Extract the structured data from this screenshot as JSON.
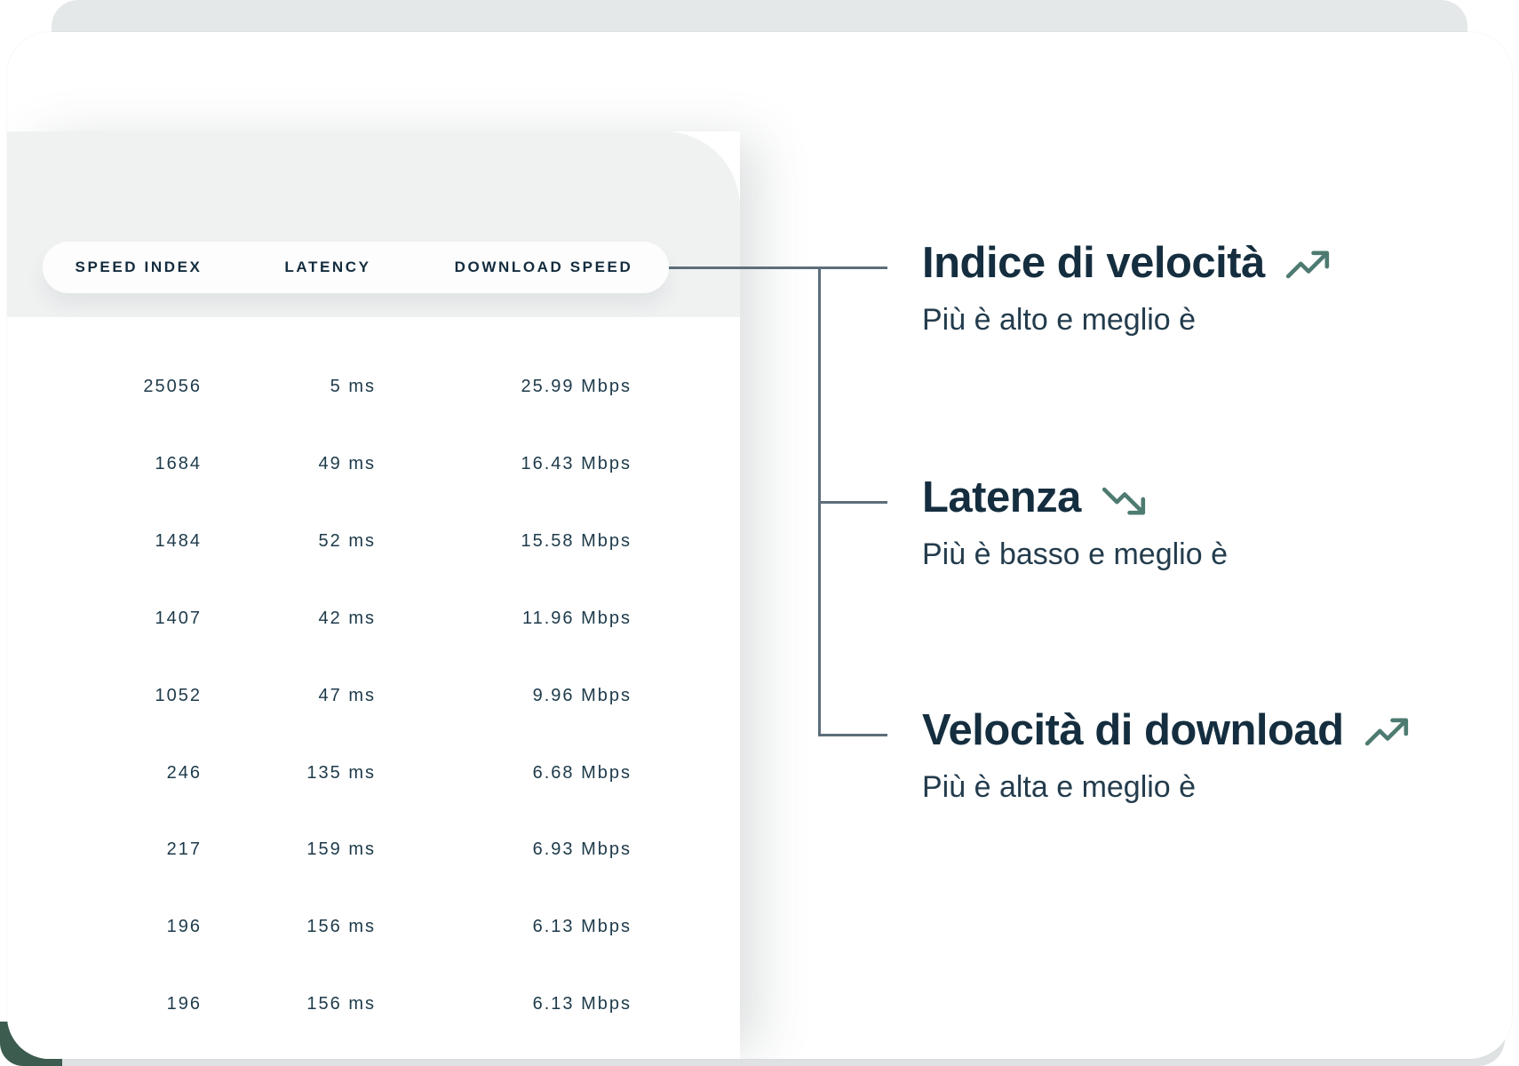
{
  "colors": {
    "heading_navy": "#152e3f",
    "table_text_navy": "#1d3a4a",
    "connector_slate": "#5c6e79",
    "trend_teal": "#4e7b71",
    "window_header_gray": "#f0f2f2",
    "backdrop_gray": "#e5e8e9",
    "corner_green": "#3d5c50"
  },
  "table": {
    "headers": [
      "SPEED INDEX",
      "LATENCY",
      "DOWNLOAD SPEED"
    ],
    "rows": [
      {
        "speed_index": "25056",
        "latency": "5 ms",
        "download_speed": "25.99 Mbps"
      },
      {
        "speed_index": "1684",
        "latency": "49 ms",
        "download_speed": "16.43 Mbps"
      },
      {
        "speed_index": "1484",
        "latency": "52 ms",
        "download_speed": "15.58 Mbps"
      },
      {
        "speed_index": "1407",
        "latency": "42 ms",
        "download_speed": "11.96 Mbps"
      },
      {
        "speed_index": "1052",
        "latency": "47 ms",
        "download_speed": "9.96 Mbps"
      },
      {
        "speed_index": "246",
        "latency": "135 ms",
        "download_speed": "6.68 Mbps"
      },
      {
        "speed_index": "217",
        "latency": "159 ms",
        "download_speed": "6.93 Mbps"
      },
      {
        "speed_index": "196",
        "latency": "156 ms",
        "download_speed": "6.13 Mbps"
      },
      {
        "speed_index": "196",
        "latency": "156 ms",
        "download_speed": "6.13 Mbps"
      }
    ]
  },
  "annotations": [
    {
      "title": "Indice di velocità",
      "subtitle": "Più è alto e meglio è",
      "trend": "up",
      "icon": "trending-up-icon"
    },
    {
      "title": "Latenza",
      "subtitle": "Più è basso e meglio è",
      "trend": "down",
      "icon": "trending-down-icon"
    },
    {
      "title": "Velocità di download",
      "subtitle": "Più è alta e meglio è",
      "trend": "up",
      "icon": "trending-up-icon"
    }
  ]
}
